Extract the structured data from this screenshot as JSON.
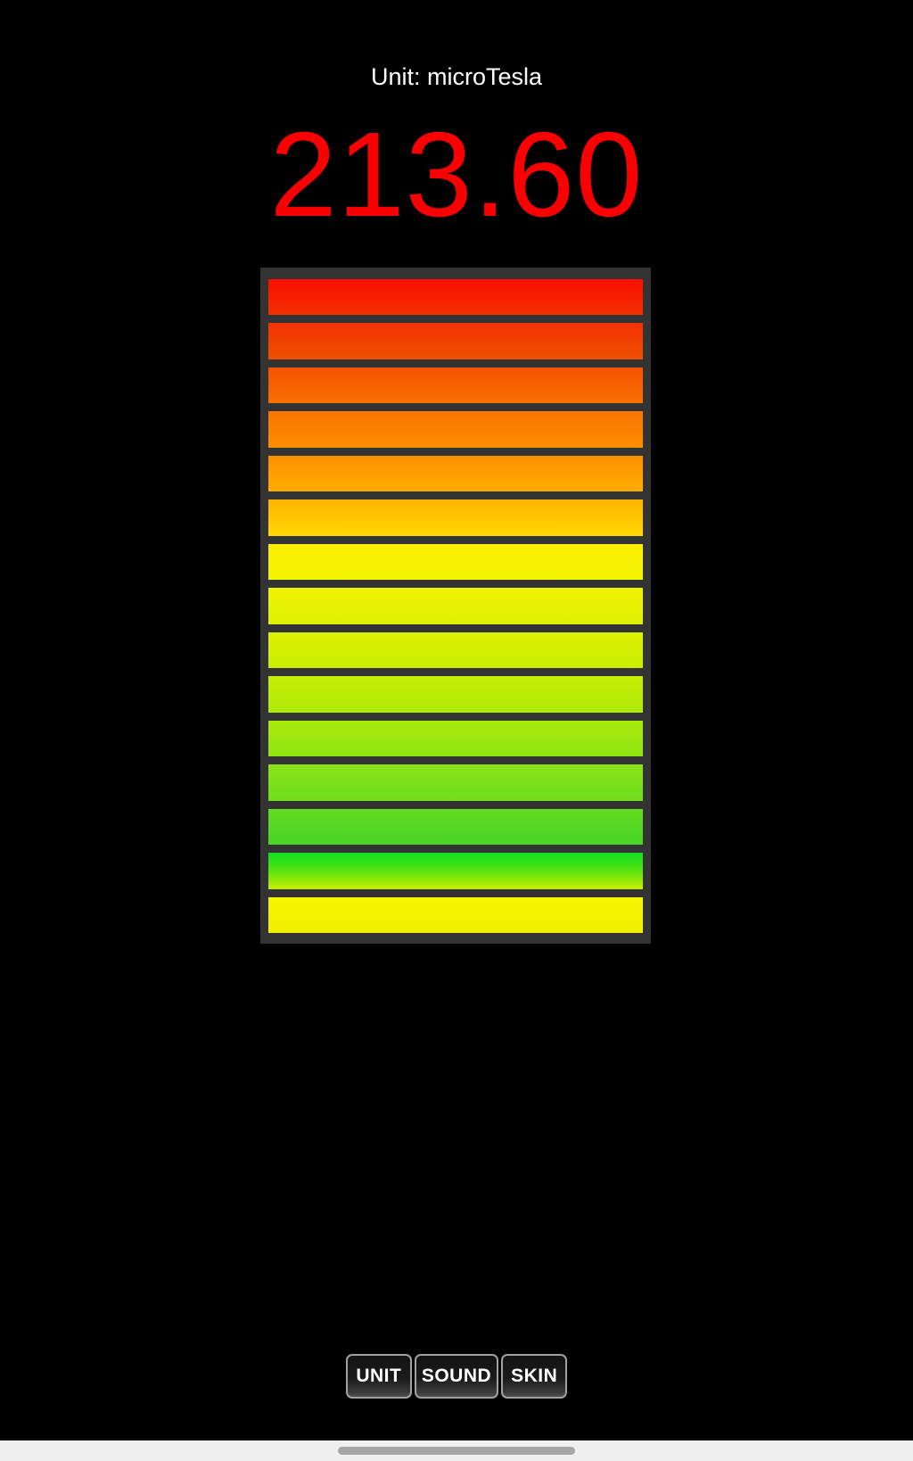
{
  "header": {
    "unit_label": "Unit: microTesla"
  },
  "reading": {
    "value": "213.60",
    "color": "#fb0000"
  },
  "meter": {
    "frame_color": "#333333",
    "bars": [
      {
        "from": "#fa0c00",
        "to": "#f23000"
      },
      {
        "from": "#f33102",
        "to": "#ef5000"
      },
      {
        "from": "#f45302",
        "to": "#f97000"
      },
      {
        "from": "#fa7400",
        "to": "#fe8e00"
      },
      {
        "from": "#fe9000",
        "to": "#ffac00"
      },
      {
        "from": "#ffb200",
        "to": "#ffd800"
      },
      {
        "from": "#fcee00",
        "to": "#f1f300"
      },
      {
        "from": "#eef300",
        "to": "#dff100"
      },
      {
        "from": "#dcf100",
        "to": "#c9ee03"
      },
      {
        "from": "#c5ee05",
        "to": "#afea09"
      },
      {
        "from": "#aae90c",
        "to": "#90e513"
      },
      {
        "from": "#8ae316",
        "to": "#6edd1d"
      },
      {
        "from": "#66db21",
        "to": "#48d529"
      },
      {
        "from": "#10dd22",
        "mid": "#50e211",
        "to": "#c9ee00"
      },
      {
        "from": "#f6f600",
        "to": "#efef00"
      }
    ]
  },
  "toolbar": {
    "buttons": [
      {
        "label": "UNIT"
      },
      {
        "label": "SOUND"
      },
      {
        "label": "SKIN"
      }
    ]
  },
  "system_nav": {
    "bar_color": "#f0f0f0",
    "handle_color": "#a6a6a6"
  }
}
